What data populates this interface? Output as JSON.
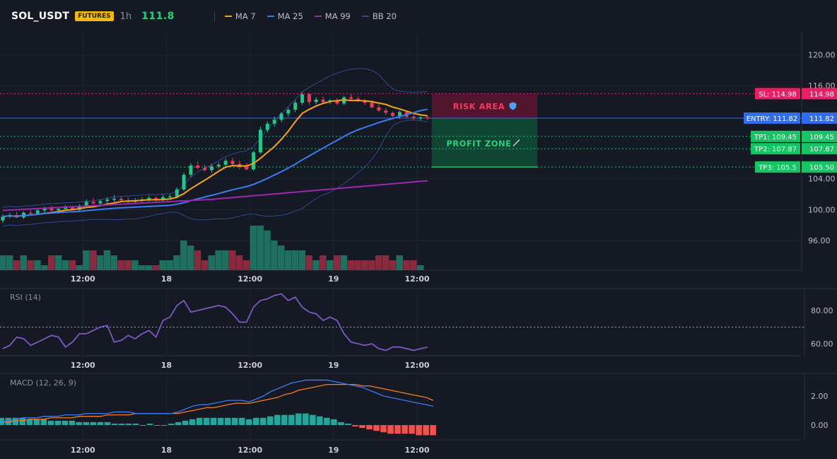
{
  "header": {
    "symbol": "SOL_USDT",
    "badge": "FUTURES",
    "interval": "1h",
    "last_price": "111.8",
    "legend": [
      {
        "label": "MA 7",
        "color": "#f7a21b"
      },
      {
        "label": "MA 25",
        "color": "#3b7cf0"
      },
      {
        "label": "MA 99",
        "color": "#9c27b0"
      },
      {
        "label": "BB 20",
        "color": "#2f4a8f"
      }
    ]
  },
  "colors": {
    "background": "#151924",
    "up": "#26c68a",
    "down": "#f0395d",
    "grid": "#1f2431",
    "entry": "#2f6df0",
    "sl": "#e91e63",
    "tp": "#16c464",
    "rsi": "#7e57c2",
    "macd": "#3b7cf0",
    "signal": "#f57c1f"
  },
  "chart_data": [
    {
      "type": "candlestick",
      "ylim": [
        92,
        122
      ],
      "y_ticks": [
        "120.00",
        "116.00",
        "104.00",
        "100.00",
        "96.00"
      ],
      "x_ticks": [
        "12:00",
        "18",
        "12:00",
        "19",
        "12:00"
      ],
      "x_tick_index": [
        12,
        24,
        36,
        48,
        60
      ],
      "candles": [
        [
          98.6,
          99.4,
          98.3,
          99.1
        ],
        [
          99.1,
          99.6,
          98.9,
          99.3
        ],
        [
          99.3,
          99.7,
          98.9,
          99.0
        ],
        [
          99.0,
          99.8,
          98.8,
          99.6
        ],
        [
          99.6,
          100.0,
          99.2,
          99.5
        ],
        [
          99.5,
          100.1,
          99.3,
          99.9
        ],
        [
          99.9,
          100.4,
          99.6,
          100.2
        ],
        [
          100.2,
          100.5,
          99.8,
          99.9
        ],
        [
          99.9,
          100.3,
          99.5,
          100.1
        ],
        [
          100.1,
          100.6,
          99.9,
          100.3
        ],
        [
          100.3,
          100.5,
          99.9,
          100.0
        ],
        [
          100.0,
          100.7,
          99.8,
          100.5
        ],
        [
          100.5,
          101.3,
          100.3,
          101.0
        ],
        [
          101.0,
          101.5,
          100.7,
          100.8
        ],
        [
          100.8,
          101.3,
          100.4,
          101.1
        ],
        [
          101.1,
          101.6,
          100.8,
          101.3
        ],
        [
          101.3,
          101.9,
          101.0,
          101.4
        ],
        [
          101.4,
          101.7,
          101.0,
          101.2
        ],
        [
          101.2,
          101.6,
          100.8,
          101.0
        ],
        [
          101.0,
          101.5,
          100.7,
          101.2
        ],
        [
          101.2,
          101.6,
          100.9,
          101.3
        ],
        [
          101.3,
          101.8,
          101.0,
          101.5
        ],
        [
          101.5,
          101.7,
          101.1,
          101.3
        ],
        [
          101.3,
          101.9,
          101.0,
          101.6
        ],
        [
          101.6,
          102.0,
          101.3,
          101.7
        ],
        [
          101.7,
          102.9,
          101.5,
          102.6
        ],
        [
          102.6,
          104.8,
          102.4,
          104.5
        ],
        [
          104.5,
          106.0,
          104.2,
          105.7
        ],
        [
          105.7,
          106.2,
          105.2,
          105.4
        ],
        [
          105.4,
          105.8,
          104.9,
          105.1
        ],
        [
          105.1,
          105.9,
          104.8,
          105.6
        ],
        [
          105.6,
          106.1,
          105.3,
          105.8
        ],
        [
          105.8,
          106.6,
          105.5,
          106.3
        ],
        [
          106.3,
          106.7,
          105.6,
          105.9
        ],
        [
          105.9,
          106.3,
          105.2,
          105.5
        ],
        [
          105.5,
          106.0,
          105.1,
          105.2
        ],
        [
          105.2,
          107.6,
          105.0,
          107.4
        ],
        [
          107.4,
          110.7,
          107.2,
          110.3
        ],
        [
          110.3,
          111.4,
          110.0,
          111.1
        ],
        [
          111.1,
          112.0,
          110.7,
          111.6
        ],
        [
          111.6,
          112.6,
          111.3,
          112.4
        ],
        [
          112.4,
          113.2,
          112.0,
          112.9
        ],
        [
          112.9,
          114.1,
          112.6,
          113.8
        ],
        [
          113.8,
          115.2,
          113.5,
          114.9
        ],
        [
          114.9,
          115.1,
          113.5,
          113.9
        ],
        [
          113.9,
          114.5,
          113.6,
          114.2
        ],
        [
          114.2,
          114.6,
          113.7,
          113.9
        ],
        [
          113.9,
          114.3,
          113.6,
          114.1
        ],
        [
          114.1,
          114.4,
          113.5,
          113.7
        ],
        [
          113.7,
          114.7,
          113.5,
          114.5
        ],
        [
          114.5,
          114.9,
          114.1,
          114.3
        ],
        [
          114.3,
          114.6,
          113.9,
          114.0
        ],
        [
          114.0,
          114.3,
          113.5,
          113.8
        ],
        [
          113.8,
          114.1,
          113.1,
          113.2
        ],
        [
          113.2,
          113.6,
          112.6,
          112.8
        ],
        [
          112.8,
          113.1,
          112.2,
          112.5
        ],
        [
          112.5,
          112.7,
          111.9,
          112.1
        ],
        [
          112.1,
          112.8,
          111.7,
          112.6
        ],
        [
          112.6,
          112.7,
          111.8,
          112.0
        ],
        [
          112.0,
          112.3,
          111.5,
          111.8
        ],
        [
          111.8,
          112.1,
          111.5,
          111.9
        ],
        [
          111.9,
          112.1,
          111.6,
          111.8
        ]
      ],
      "volume": [
        3,
        3,
        2,
        3,
        2,
        2,
        1,
        3,
        3,
        2,
        2,
        1,
        4,
        4,
        3,
        4,
        3,
        2,
        2,
        2,
        1,
        1,
        1,
        2,
        2,
        3,
        6,
        5,
        4,
        2,
        3,
        4,
        4,
        4,
        3,
        2,
        9,
        9,
        8,
        6,
        5,
        4,
        4,
        4,
        3,
        2,
        3,
        2,
        3,
        3,
        2,
        2,
        2,
        2,
        3,
        3,
        2,
        3,
        2,
        2,
        1,
        0
      ],
      "levels": [
        {
          "name": "SL",
          "price": 114.98,
          "tag": "SL: 114.98",
          "axis": "114.98"
        },
        {
          "name": "ENTRY",
          "price": 111.82,
          "tag": "ENTRY: 111.82",
          "axis": "111.82"
        },
        {
          "name": "TP1",
          "price": 109.45,
          "tag": "TP1: 109.45",
          "axis": "109.45"
        },
        {
          "name": "TP2",
          "price": 107.87,
          "tag": "TP2: 107.87",
          "axis": "107.87"
        },
        {
          "name": "TP3",
          "price": 105.5,
          "tag": "TP3: 105.5",
          "axis": "105.50"
        }
      ],
      "zones": [
        {
          "label": "RISK AREA",
          "icon": "shield-icon"
        },
        {
          "label": "PROFIT ZONE",
          "icon": "rocket-icon"
        }
      ]
    },
    {
      "type": "line",
      "title": "RSI (14)",
      "ylim": [
        50,
        92
      ],
      "y_ticks": [
        "80.00",
        "60.00"
      ],
      "reference_line": 70,
      "values": [
        57,
        59,
        64,
        63,
        59,
        61,
        63,
        65,
        64,
        58,
        61,
        66,
        66,
        68,
        70,
        71,
        61,
        62,
        65,
        63,
        66,
        68,
        64,
        74,
        76,
        83,
        86,
        79,
        80,
        81,
        82,
        83,
        82,
        78,
        73,
        73,
        82,
        86,
        87,
        89,
        90,
        86,
        88,
        82,
        79,
        78,
        74,
        76,
        74,
        66,
        61,
        60,
        59,
        60,
        57,
        56,
        58,
        58,
        57,
        56,
        57,
        58
      ]
    },
    {
      "type": "line",
      "title": "MACD (12, 26, 9)",
      "ylim": [
        -1.5,
        3.8
      ],
      "y_ticks": [
        "2.00",
        "0.00"
      ],
      "macd": [
        0.2,
        0.3,
        0.4,
        0.5,
        0.5,
        0.5,
        0.6,
        0.6,
        0.6,
        0.7,
        0.7,
        0.7,
        0.8,
        0.8,
        0.8,
        0.8,
        0.9,
        0.9,
        0.9,
        0.8,
        0.8,
        0.8,
        0.8,
        0.8,
        0.8,
        0.9,
        1.1,
        1.3,
        1.4,
        1.4,
        1.5,
        1.6,
        1.7,
        1.7,
        1.7,
        1.6,
        1.8,
        2.0,
        2.3,
        2.5,
        2.7,
        2.9,
        3.0,
        3.1,
        3.1,
        3.1,
        3.1,
        3.0,
        2.9,
        2.8,
        2.7,
        2.6,
        2.4,
        2.2,
        2.0,
        1.9,
        1.8,
        1.7,
        1.6,
        1.5,
        1.4,
        1.3
      ],
      "signal": [
        0.2,
        0.2,
        0.3,
        0.3,
        0.4,
        0.4,
        0.4,
        0.5,
        0.5,
        0.5,
        0.5,
        0.6,
        0.6,
        0.6,
        0.6,
        0.7,
        0.7,
        0.7,
        0.7,
        0.8,
        0.8,
        0.8,
        0.8,
        0.8,
        0.8,
        0.8,
        0.9,
        1.0,
        1.1,
        1.2,
        1.2,
        1.3,
        1.4,
        1.5,
        1.5,
        1.5,
        1.6,
        1.7,
        1.8,
        1.9,
        2.1,
        2.2,
        2.4,
        2.5,
        2.6,
        2.7,
        2.8,
        2.8,
        2.8,
        2.8,
        2.8,
        2.7,
        2.7,
        2.6,
        2.5,
        2.4,
        2.3,
        2.2,
        2.1,
        2.0,
        1.9,
        1.7
      ],
      "histogram": [
        0.5,
        0.5,
        0.5,
        0.5,
        0.4,
        0.4,
        0.4,
        0.3,
        0.3,
        0.3,
        0.3,
        0.2,
        0.2,
        0.2,
        0.2,
        0.2,
        0.1,
        0.1,
        0.1,
        0.1,
        0.0,
        0.1,
        0.0,
        0.0,
        0.1,
        0.2,
        0.3,
        0.4,
        0.5,
        0.5,
        0.5,
        0.5,
        0.5,
        0.5,
        0.5,
        0.4,
        0.5,
        0.5,
        0.6,
        0.7,
        0.7,
        0.7,
        0.8,
        0.8,
        0.7,
        0.6,
        0.5,
        0.4,
        0.2,
        0.1,
        -0.1,
        -0.2,
        -0.3,
        -0.4,
        -0.5,
        -0.6,
        -0.6,
        -0.6,
        -0.6,
        -0.7,
        -0.7,
        -0.7
      ]
    }
  ]
}
